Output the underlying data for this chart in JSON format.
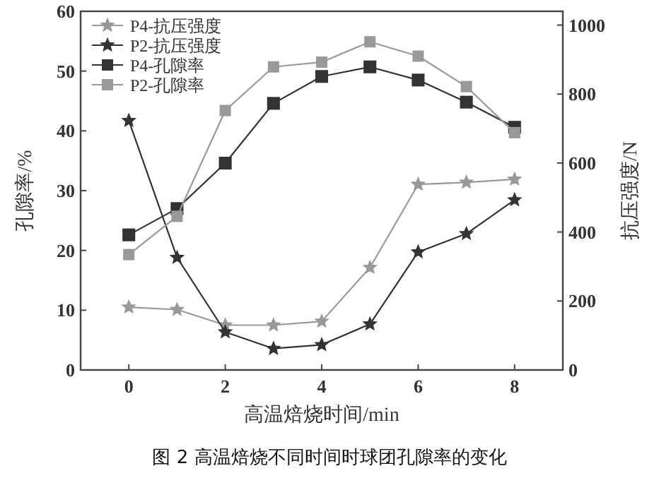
{
  "chart_data": {
    "type": "line",
    "xlabel": "高温焙烧时间/min",
    "ylabel": "孔隙率/%",
    "y2label": "抗压强度/N",
    "annotations": [
      "图 2  高温焙烧不同时间时球团孔隙率的变化"
    ],
    "x": [
      0,
      1,
      2,
      3,
      4,
      5,
      6,
      7,
      8
    ],
    "xlim": [
      -1,
      9
    ],
    "xticks": [
      0,
      2,
      4,
      6,
      8
    ],
    "ylim": [
      0,
      60
    ],
    "yticks": [
      0,
      10,
      20,
      30,
      40,
      50,
      60
    ],
    "y2lim": [
      0,
      1040
    ],
    "y2ticks": [
      0,
      200,
      400,
      600,
      800,
      1000
    ],
    "legend": "top left",
    "grid": false,
    "series": [
      {
        "name": "P4-抗压强度",
        "color": "#999999",
        "axis": "y2",
        "marker": "star",
        "values": [
          182,
          175,
          130,
          130,
          141,
          297,
          538,
          544,
          553
        ]
      },
      {
        "name": "P2-抗压强度",
        "color": "#333333",
        "axis": "y2",
        "marker": "star",
        "values": [
          723,
          326,
          110,
          62,
          73,
          133,
          342,
          395,
          493
        ]
      },
      {
        "name": "P4-孔隙率",
        "color": "#333333",
        "marker": "square",
        "values": [
          22.6,
          27.0,
          34.6,
          44.6,
          49.1,
          50.7,
          48.5,
          44.8,
          40.6
        ]
      },
      {
        "name": "P2-孔隙率",
        "color": "#999999",
        "marker": "square",
        "values": [
          19.3,
          25.7,
          43.4,
          50.7,
          51.5,
          54.9,
          52.5,
          47.4,
          39.7
        ]
      }
    ]
  }
}
